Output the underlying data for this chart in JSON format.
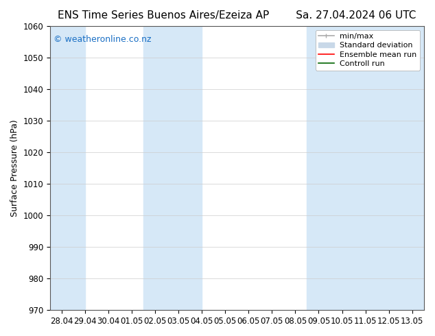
{
  "title_left": "ENS Time Series Buenos Aires/Ezeiza AP",
  "title_right": "Sa. 27.04.2024 06 UTC",
  "ylabel": "Surface Pressure (hPa)",
  "ylim": [
    970,
    1060
  ],
  "yticks": [
    970,
    980,
    990,
    1000,
    1010,
    1020,
    1030,
    1040,
    1050,
    1060
  ],
  "xtick_labels": [
    "28.04",
    "29.04",
    "30.04",
    "01.05",
    "02.05",
    "03.05",
    "04.05",
    "05.05",
    "06.05",
    "07.05",
    "08.05",
    "09.05",
    "10.05",
    "11.05",
    "12.05",
    "13.05"
  ],
  "shaded_ranges": [
    [
      -0.5,
      1.0
    ],
    [
      3.5,
      6.0
    ],
    [
      10.5,
      15.5
    ]
  ],
  "band_color": "#d6e8f7",
  "background_color": "#ffffff",
  "watermark": "© weatheronline.co.nz",
  "watermark_color": "#1a6fc4",
  "legend_min_max_color": "#aaaaaa",
  "legend_std_color": "#c8d8e8",
  "legend_mean_color": "red",
  "legend_ctrl_color": "darkgreen",
  "font_size_title": 11,
  "font_size_axis": 9,
  "font_size_tick": 8.5,
  "font_size_watermark": 9,
  "font_size_legend": 8
}
